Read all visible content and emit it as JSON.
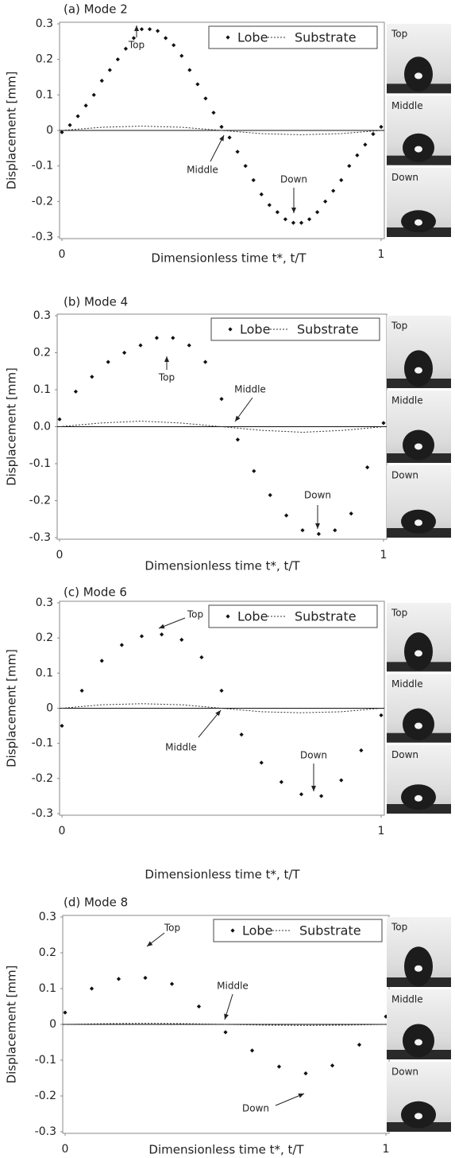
{
  "chart_data": [
    {
      "type": "scatter",
      "title": "(a) Mode 2",
      "x_label": "Dimensionless time t*, t/T",
      "y_label": "Displacement [mm]",
      "xlim": [
        0,
        1
      ],
      "xticks": [
        0,
        1
      ],
      "ylim": [
        -0.3,
        0.3
      ],
      "yticks": [
        0.3,
        0.2,
        0.1,
        0,
        -0.1,
        -0.2,
        -0.3
      ],
      "series": [
        {
          "name": "Lobe",
          "color": "#111111",
          "mode": "markers",
          "x": [
            0,
            0.025,
            0.05,
            0.075,
            0.1,
            0.125,
            0.15,
            0.175,
            0.2,
            0.225,
            0.25,
            0.275,
            0.3,
            0.325,
            0.35,
            0.375,
            0.4,
            0.425,
            0.45,
            0.475,
            0.5,
            0.525,
            0.55,
            0.575,
            0.6,
            0.625,
            0.65,
            0.675,
            0.7,
            0.725,
            0.75,
            0.775,
            0.8,
            0.825,
            0.85,
            0.875,
            0.9,
            0.925,
            0.95,
            0.975,
            1
          ],
          "values": [
            -0.005,
            0.015,
            0.04,
            0.07,
            0.1,
            0.14,
            0.17,
            0.2,
            0.23,
            0.26,
            0.285,
            0.285,
            0.28,
            0.26,
            0.24,
            0.21,
            0.17,
            0.13,
            0.09,
            0.05,
            0.01,
            -0.02,
            -0.06,
            -0.1,
            -0.14,
            -0.18,
            -0.21,
            -0.23,
            -0.25,
            -0.26,
            -0.26,
            -0.25,
            -0.23,
            -0.2,
            -0.17,
            -0.14,
            -0.1,
            -0.07,
            -0.04,
            -0.01,
            0.01
          ]
        },
        {
          "name": "Substrate",
          "color": "#333333",
          "mode": "dashed-line",
          "x": [
            0,
            0.125,
            0.25,
            0.375,
            0.5,
            0.625,
            0.75,
            0.875,
            1
          ],
          "values": [
            0,
            0.009,
            0.012,
            0.009,
            0,
            -0.009,
            -0.012,
            -0.009,
            0
          ]
        }
      ],
      "annotations": [
        "Top",
        "Middle",
        "Down"
      ],
      "snapshot_labels": [
        "Top",
        "Middle",
        "Down"
      ]
    },
    {
      "type": "scatter",
      "title": "(b) Mode 4",
      "x_label": "Dimensionless time t*, t/T",
      "y_label": "Displacement [mm]",
      "xlim": [
        0,
        1
      ],
      "xticks": [
        0,
        1
      ],
      "ylim": [
        -0.3,
        0.3
      ],
      "yticks": [
        0.3,
        0.2,
        0.1,
        {
          "value": 0,
          "label": "0.0"
        },
        -0.1,
        -0.2,
        -0.3
      ],
      "series": [
        {
          "name": "Lobe",
          "color": "#111111",
          "mode": "markers",
          "x": [
            0,
            0.05,
            0.1,
            0.15,
            0.2,
            0.25,
            0.3,
            0.35,
            0.4,
            0.45,
            0.5,
            0.55,
            0.6,
            0.65,
            0.7,
            0.75,
            0.8,
            0.85,
            0.9,
            0.95,
            1
          ],
          "values": [
            0.02,
            0.095,
            0.135,
            0.175,
            0.2,
            0.22,
            0.24,
            0.24,
            0.22,
            0.175,
            0.075,
            -0.035,
            -0.12,
            -0.185,
            -0.24,
            -0.28,
            -0.29,
            -0.28,
            -0.235,
            -0.11,
            0.01
          ]
        },
        {
          "name": "Substrate",
          "color": "#333333",
          "mode": "dashed-line",
          "x": [
            0,
            0.125,
            0.25,
            0.375,
            0.5,
            0.625,
            0.75,
            0.875,
            1
          ],
          "values": [
            0,
            0.01,
            0.015,
            0.01,
            0,
            -0.01,
            -0.015,
            -0.01,
            0
          ]
        }
      ],
      "annotations": [
        "Top",
        "Middle",
        "Down"
      ],
      "snapshot_labels": [
        "Top",
        "Middle",
        "Down"
      ]
    },
    {
      "type": "scatter",
      "title": "(c) Mode 6",
      "x_label": "Dimensionless time t*, t/T",
      "y_label": "Displacement [mm]",
      "xlim": [
        0,
        1
      ],
      "xticks": [
        0,
        1
      ],
      "ylim": [
        -0.3,
        0.3
      ],
      "yticks": [
        0.3,
        0.2,
        0.1,
        0,
        -0.1,
        -0.2,
        -0.3
      ],
      "series": [
        {
          "name": "Lobe",
          "color": "#111111",
          "mode": "markers",
          "x": [
            0,
            0.0625,
            0.125,
            0.1875,
            0.25,
            0.3125,
            0.375,
            0.4375,
            0.5,
            0.5625,
            0.625,
            0.6875,
            0.75,
            0.8125,
            0.875,
            0.9375,
            1
          ],
          "values": [
            -0.05,
            0.05,
            0.135,
            0.18,
            0.205,
            0.21,
            0.195,
            0.145,
            0.05,
            -0.075,
            -0.155,
            -0.21,
            -0.245,
            -0.25,
            -0.205,
            -0.12,
            -0.02
          ]
        },
        {
          "name": "Substrate",
          "color": "#333333",
          "mode": "dashed-line",
          "x": [
            0,
            0.125,
            0.25,
            0.375,
            0.5,
            0.625,
            0.75,
            0.875,
            1
          ],
          "values": [
            0,
            0.01,
            0.013,
            0.01,
            0,
            -0.01,
            -0.013,
            -0.01,
            0
          ]
        }
      ],
      "annotations": [
        "Top",
        "Middle",
        "Down"
      ],
      "snapshot_labels": [
        "Top",
        "Middle",
        "Down"
      ]
    },
    {
      "type": "scatter",
      "title": "(d) Mode 8",
      "x_label": "Dimensionless time t*, t/T",
      "y_label": "Displacement [mm]",
      "xlim": [
        0,
        1
      ],
      "xticks": [
        0,
        1
      ],
      "ylim": [
        -0.3,
        0.3
      ],
      "yticks": [
        0.3,
        0.2,
        0.1,
        0,
        -0.1,
        -0.2,
        -0.3
      ],
      "series": [
        {
          "name": "Lobe",
          "color": "#111111",
          "mode": "markers",
          "x": [
            0,
            0.083,
            0.167,
            0.25,
            0.333,
            0.417,
            0.5,
            0.583,
            0.667,
            0.75,
            0.833,
            0.917,
            1
          ],
          "values": [
            0.033,
            0.1,
            0.127,
            0.13,
            0.113,
            0.05,
            -0.022,
            -0.073,
            -0.118,
            -0.137,
            -0.115,
            -0.057,
            0.022
          ]
        },
        {
          "name": "Substrate",
          "color": "#333333",
          "mode": "dashed-line",
          "x": [
            0,
            0.125,
            0.25,
            0.375,
            0.5,
            0.625,
            0.75,
            0.875,
            1
          ],
          "values": [
            0,
            0.002,
            0.003,
            0.002,
            0,
            -0.002,
            -0.003,
            -0.002,
            0
          ]
        }
      ],
      "annotations": [
        "Top",
        "Middle",
        "Down"
      ],
      "snapshot_labels": [
        "Top",
        "Middle",
        "Down"
      ]
    }
  ]
}
